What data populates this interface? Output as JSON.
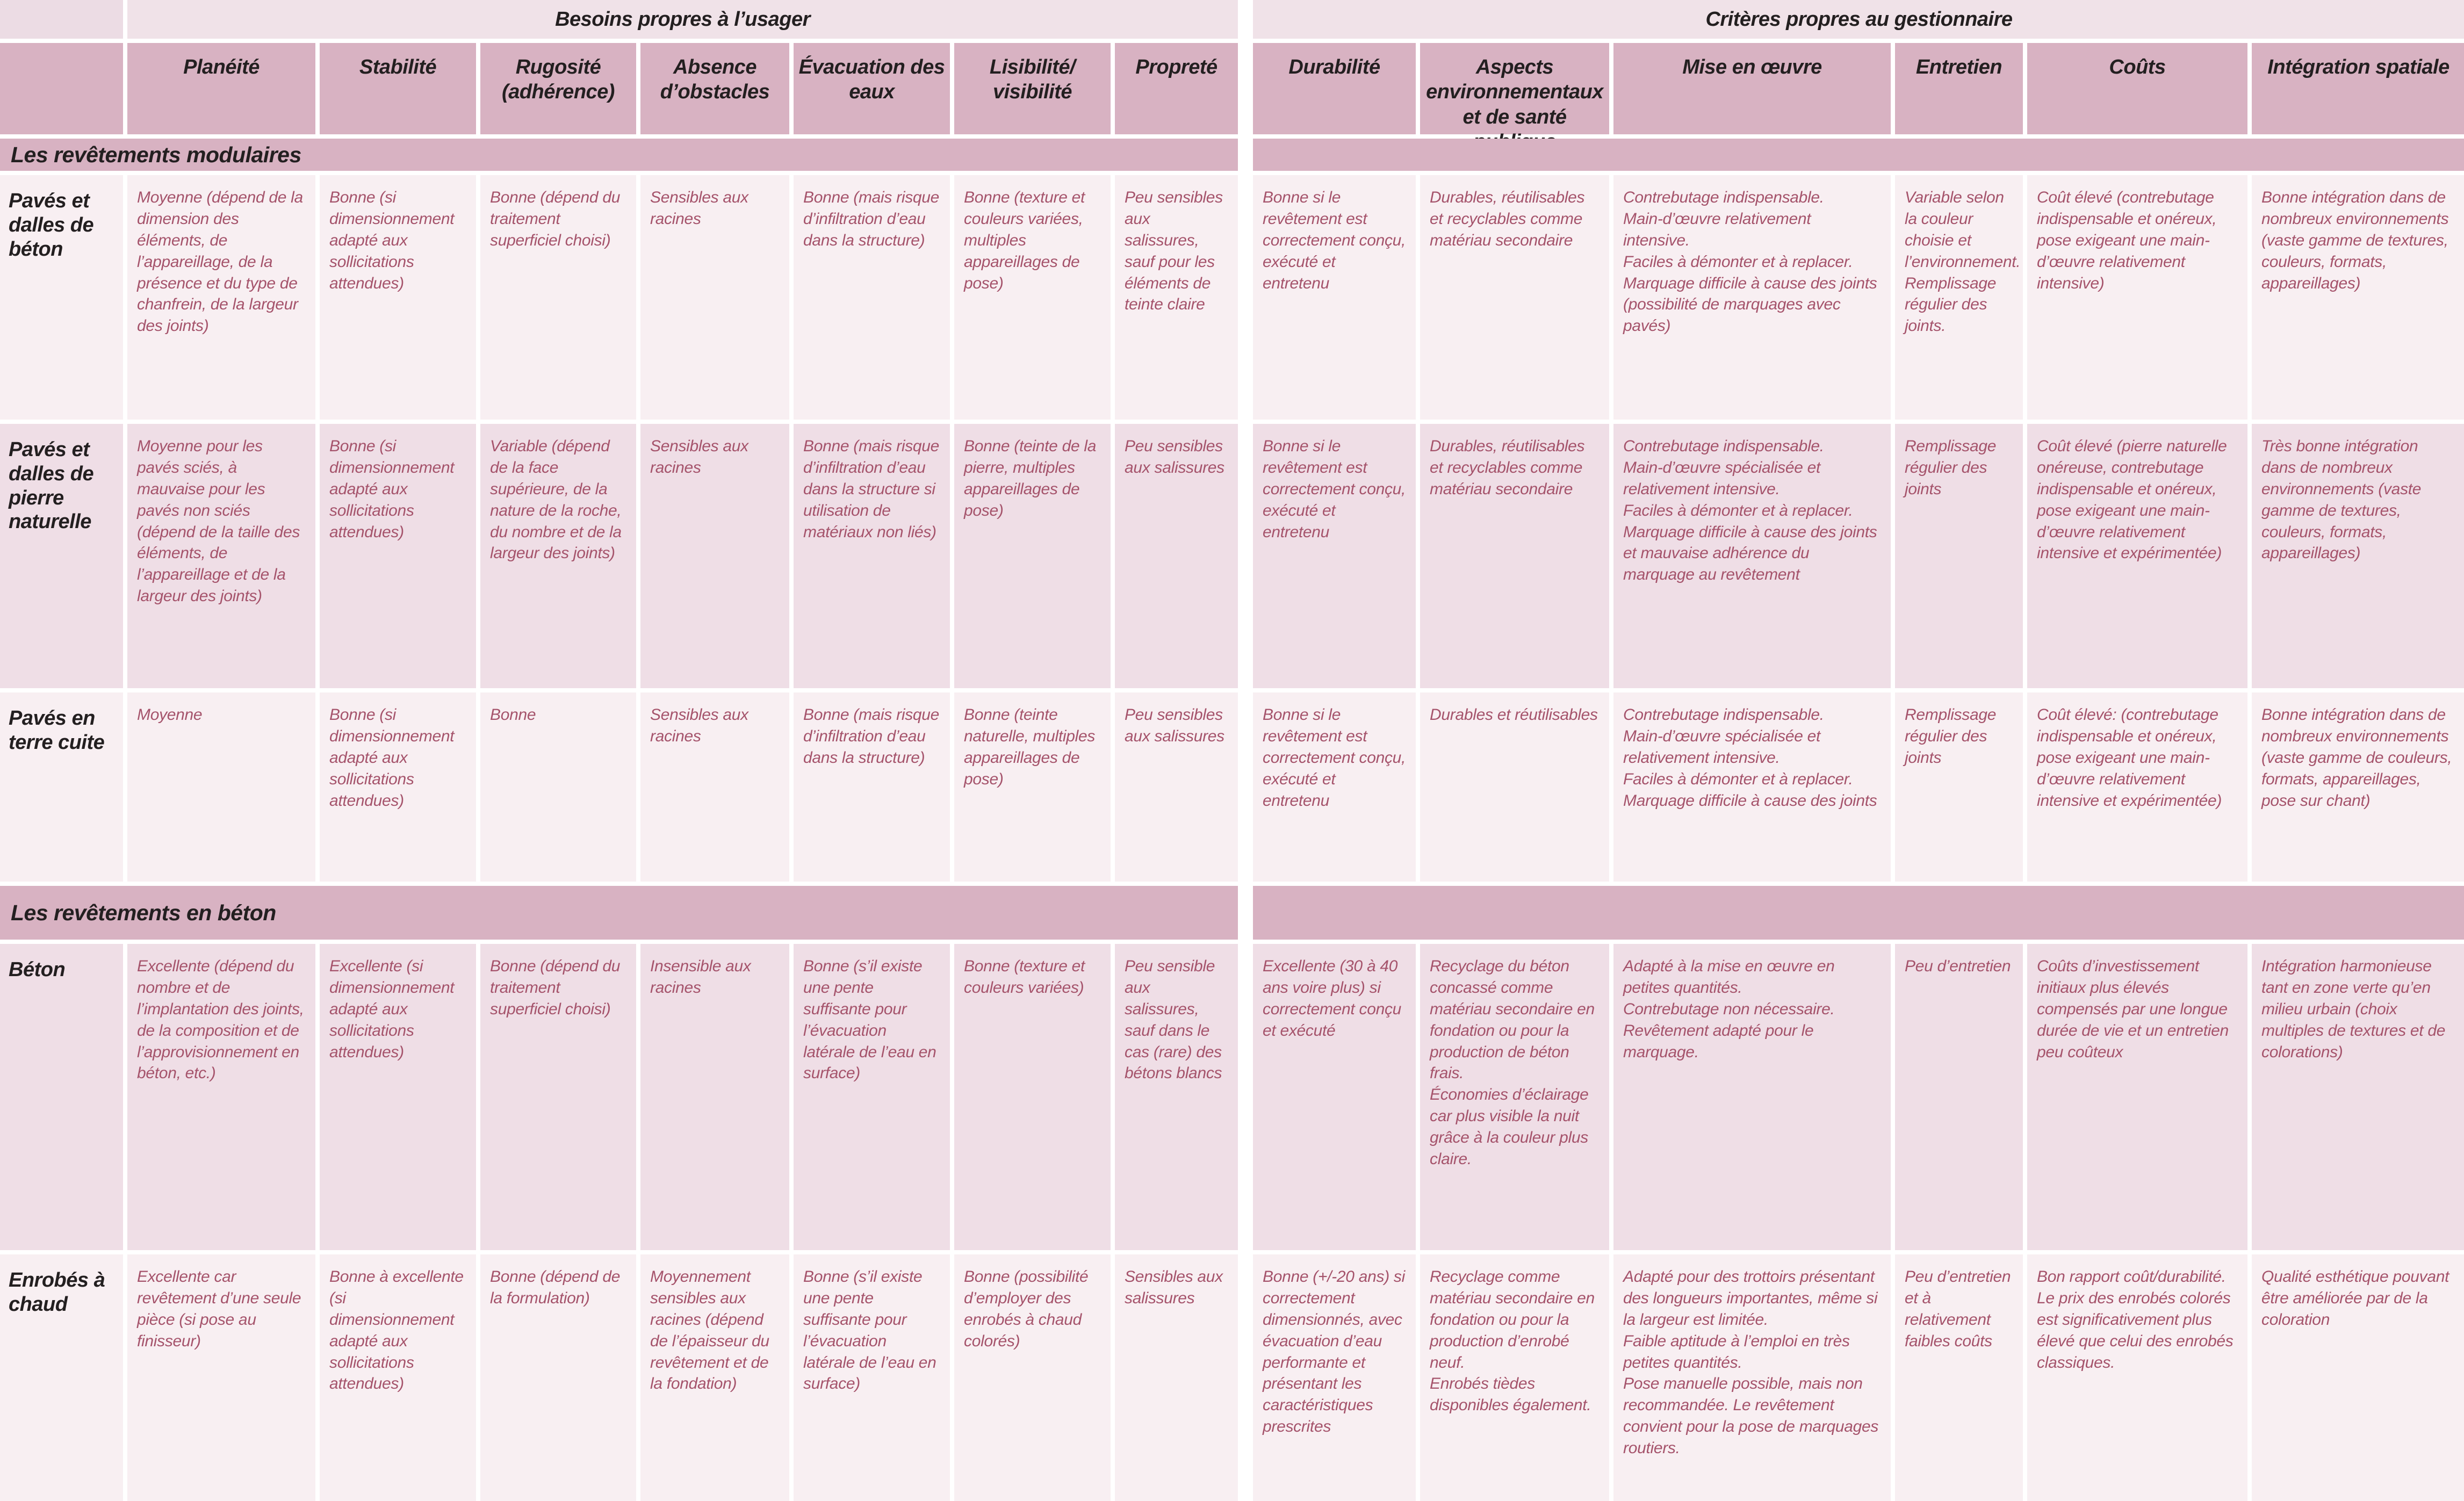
{
  "table": {
    "group_headers": [
      "Besoins propres à l’usager",
      "Critères propres au gestionnaire"
    ],
    "columns": [
      "Planéité",
      "Stabilité",
      "Rugosité (adhérence)",
      "Absence d’obstacles",
      "Évacuation des eaux",
      "Lisibilité/ visibilité",
      "Propreté",
      "Durabilité",
      "Aspects environnementaux et de santé publique",
      "Mise en œuvre",
      "Entretien",
      "Coûts",
      "Intégration spatiale"
    ],
    "colors": {
      "group_header_bg": "#f0e2e8",
      "column_header_bg": "#d8b2c2",
      "section_bar_bg": "#d8b2c2",
      "row_light_bg": "#f8eff2",
      "row_dark_bg": "#efdee6",
      "cell_text": "#a5536b",
      "heading_text": "#231f20"
    },
    "sections": [
      {
        "title": "Les revêtements modulaires",
        "rows": [
          {
            "label": "Pavés et dalles de béton",
            "cells": [
              "Moyenne (dépend de la dimension des éléments, de l’appareillage, de la présence et du type de chanfrein, de la largeur des joints)",
              "Bonne (si dimensionnement adapté aux sollicitations attendues)",
              "Bonne (dépend du traitement superficiel choisi)",
              "Sensibles aux racines",
              "Bonne (mais risque d’infiltration d’eau dans la structure)",
              "Bonne (texture et couleurs variées, multiples appareillages de pose)",
              "Peu sensibles aux salissures, sauf pour les éléments de teinte claire",
              "Bonne si le revêtement est correctement conçu, exécuté et entretenu",
              "Durables, réutilisables et recyclables comme matériau secondaire",
              "Contrebutage indispensable.\nMain-d’œuvre relativement intensive.\nFaciles à démonter et à replacer.\nMarquage difficile à cause des joints (possibilité de marquages avec pavés)",
              "Variable selon la couleur choisie et l’environnement.\nRemplissage régulier des joints.",
              "Coût élevé (contrebutage indispensable et onéreux, pose exigeant une main-d’œuvre relativement intensive)",
              "Bonne intégration dans de nombreux environnements (vaste gamme de textures, couleurs, formats, appareillages)"
            ]
          },
          {
            "label": "Pavés et dalles de pierre naturelle",
            "cells": [
              "Moyenne pour les pavés sciés, à mauvaise pour les pavés non sciés (dépend de la taille des éléments, de l’appareillage et de la largeur des joints)",
              "Bonne (si dimensionnement adapté aux sollicitations attendues)",
              "Variable (dépend de la face supérieure, de la nature de la roche, du nombre et de la largeur des joints)",
              "Sensibles aux racines",
              "Bonne (mais risque d’infiltration d’eau dans la structure si utilisation de matériaux non liés)",
              "Bonne (teinte de la pierre, multiples appareillages de pose)",
              "Peu sensibles aux salissures",
              "Bonne si le revêtement est correctement conçu, exécuté et entretenu",
              "Durables, réutilisables et recyclables comme matériau secondaire",
              "Contrebutage indispensable.\nMain-d’œuvre spécialisée et relativement intensive.\nFaciles à démonter et à replacer.\nMarquage difficile à cause des joints et mauvaise adhérence du marquage au revêtement",
              "Remplissage régulier des joints",
              "Coût élevé (pierre naturelle onéreuse, contrebutage indispensable et onéreux, pose exigeant une main-d’œuvre relativement intensive et expérimentée)",
              "Très bonne intégration dans de nombreux environnements (vaste gamme de textures, couleurs, formats, appareillages)"
            ]
          },
          {
            "label": "Pavés en terre cuite",
            "cells": [
              "Moyenne",
              "Bonne (si dimensionnement adapté aux sollicitations attendues)",
              "Bonne",
              "Sensibles aux racines",
              "Bonne (mais risque d’infiltration d’eau dans la structure)",
              "Bonne (teinte naturelle, multiples appareillages de pose)",
              "Peu sensibles aux salissures",
              "Bonne si le revêtement est correctement conçu, exécuté et entretenu",
              "Durables et réutilisables",
              "Contrebutage indispensable.\nMain-d’œuvre spécialisée et relativement intensive.\nFaciles à démonter et à replacer.\nMarquage difficile à cause des joints",
              "Remplissage régulier des joints",
              "Coût élevé: (contrebutage indispensable et onéreux, pose exigeant une main-d’œuvre relativement intensive et expérimentée)",
              "Bonne intégration dans de nombreux environnements (vaste gamme de couleurs, formats, appareillages, pose sur chant)"
            ]
          }
        ]
      },
      {
        "title": "Les revêtements en béton",
        "rows": [
          {
            "label": "Béton",
            "cells": [
              "Excellente (dépend du nombre et de l’implantation des joints, de la composition et de l’approvisionnement en béton, etc.)",
              "Excellente (si dimensionnement adapté aux sollicitations attendues)",
              "Bonne (dépend du traitement superficiel choisi)",
              "Insensible aux racines",
              "Bonne (s’il existe une pente suffisante pour l’évacuation latérale de l’eau en surface)",
              "Bonne (texture et couleurs variées)",
              "Peu sensible aux salissures, sauf dans le cas (rare) des bétons blancs",
              "Excellente (30 à 40 ans voire plus) si correctement conçu et exécuté",
              "Recyclage du béton concassé comme matériau secondaire en fondation ou pour la production de béton frais.\nÉconomies d’éclairage car plus visible la nuit grâce à la couleur plus claire.",
              "Adapté à la mise en œuvre en petites quantités.\nContrebutage non nécessaire.\nRevêtement adapté pour le marquage.",
              "Peu d’entretien",
              "Coûts d’investissement initiaux plus élevés compensés par une longue durée de vie et un entretien peu coûteux",
              "Intégration harmonieuse tant en zone verte qu’en milieu urbain (choix multiples de textures et de colorations)"
            ]
          },
          {
            "label": "Enrobés à chaud",
            "cells": [
              "Excellente car revêtement d’une seule pièce (si pose au finisseur)",
              "Bonne à excellente (si dimensionnement adapté aux sollicitations attendues)",
              "Bonne (dépend de la formulation)",
              "Moyennement sensibles aux racines (dépend de l’épaisseur du revêtement et de la fondation)",
              "Bonne (s’il existe une pente suffisante pour l’évacuation latérale de l’eau en surface)",
              "Bonne (possibilité d’employer des enrobés à chaud colorés)",
              "Sensibles aux salissures",
              "Bonne (+/-20 ans) si correctement dimensionnés, avec évacuation d’eau performante et présentant les caractéristiques prescrites",
              "Recyclage comme matériau secondaire en fondation ou pour la production d’enrobé neuf.\nEnrobés tièdes disponibles également.",
              "Adapté pour des trottoirs présentant des longueurs importantes, même si la largeur est limitée.\nFaible aptitude à l’emploi en très petites quantités.\nPose manuelle possible, mais non recommandée. Le revêtement convient pour la pose de marquages routiers.",
              "Peu d’entretien et à relativement faibles coûts",
              "Bon rapport coût/durabilité. Le prix des enrobés colorés est significativement plus élevé que celui des enrobés classiques.",
              "Qualité esthétique pouvant être améliorée par de la coloration"
            ]
          }
        ]
      }
    ]
  }
}
